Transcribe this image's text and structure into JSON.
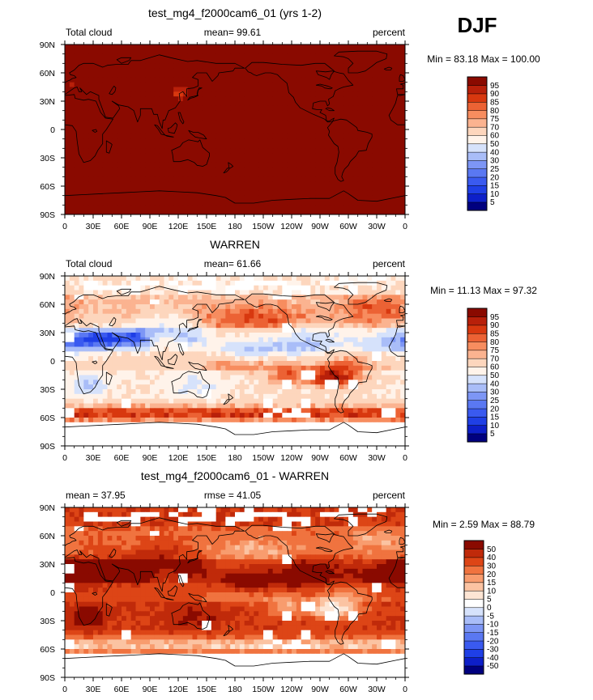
{
  "season": "DJF",
  "colors": {
    "land_line": "#000000",
    "missing": "#ffffff"
  },
  "chart_data": [
    {
      "type": "heatmap",
      "title": "test_mg4_f2000cam6_01 (yrs 1-2)",
      "left_label": "Total cloud",
      "center_label": "mean=   99.61",
      "right_label": "percent",
      "stats": "Min =  83.18 Max = 100.00",
      "x_ticks": [
        "0",
        "30E",
        "60E",
        "90E",
        "120E",
        "150E",
        "180",
        "150W",
        "120W",
        "90W",
        "60W",
        "30W",
        "0"
      ],
      "y_ticks": [
        "90N",
        "60N",
        "30N",
        "0",
        "30S",
        "60S",
        "90S"
      ],
      "levels": [
        "5",
        "10",
        "15",
        "20",
        "25",
        "30",
        "40",
        "50",
        "60",
        "70",
        "75",
        "80",
        "85",
        "90",
        "95"
      ],
      "palette": [
        "#00007f",
        "#0d1fc9",
        "#1f3fe6",
        "#3a5af0",
        "#5a78f2",
        "#7d96f5",
        "#a9bdf8",
        "#d6e2fb",
        "#fff3ea",
        "#fdd6bd",
        "#fbb390",
        "#f78d5f",
        "#ec6234",
        "#d8380f",
        "#b8200a",
        "#8a0a00"
      ],
      "field": "model",
      "mean": 99.61,
      "min": 83.18,
      "max": 100.0
    },
    {
      "type": "heatmap",
      "title": "WARREN",
      "left_label": "Total cloud",
      "center_label": "mean=   61.66",
      "right_label": "percent",
      "stats": "Min =  11.13 Max =  97.32",
      "x_ticks": [
        "0",
        "30E",
        "60E",
        "90E",
        "120E",
        "150E",
        "180",
        "150W",
        "120W",
        "90W",
        "60W",
        "30W",
        "0"
      ],
      "y_ticks": [
        "90N",
        "60N",
        "30N",
        "0",
        "30S",
        "60S",
        "90S"
      ],
      "levels": [
        "5",
        "10",
        "15",
        "20",
        "25",
        "30",
        "40",
        "50",
        "60",
        "70",
        "75",
        "80",
        "85",
        "90",
        "95"
      ],
      "palette": [
        "#00007f",
        "#0d1fc9",
        "#1f3fe6",
        "#3a5af0",
        "#5a78f2",
        "#7d96f5",
        "#a9bdf8",
        "#d6e2fb",
        "#fff3ea",
        "#fdd6bd",
        "#fbb390",
        "#f78d5f",
        "#ec6234",
        "#d8380f",
        "#b8200a",
        "#8a0a00"
      ],
      "field": "obs",
      "mean": 61.66,
      "min": 11.13,
      "max": 97.32
    },
    {
      "type": "heatmap",
      "title": "test_mg4_f2000cam6_01 - WARREN",
      "left_label": "mean =   37.95",
      "center_label": "rmse =   41.05",
      "right_label": "percent",
      "stats": "Min =   2.59 Max =  88.79",
      "x_ticks": [
        "0",
        "30E",
        "60E",
        "90E",
        "120E",
        "150E",
        "180",
        "150W",
        "120W",
        "90W",
        "60W",
        "30W",
        "0"
      ],
      "y_ticks": [
        "90N",
        "60N",
        "30N",
        "0",
        "30S",
        "60S",
        "90S"
      ],
      "levels": [
        "-50",
        "-40",
        "-30",
        "-20",
        "-15",
        "-10",
        "-5",
        "0",
        "5",
        "10",
        "15",
        "20",
        "30",
        "40",
        "50"
      ],
      "palette": [
        "#00007f",
        "#0d1fc9",
        "#1f3fe6",
        "#3a5af0",
        "#5a78f2",
        "#7d96f5",
        "#a9bdf8",
        "#d6e2fb",
        "#ffffff",
        "#fde5d4",
        "#fbc3a2",
        "#f89c6e",
        "#f0733f",
        "#dd4516",
        "#c02a0a",
        "#8a0a00"
      ],
      "field": "diff",
      "mean": 37.95,
      "rmse": 41.05,
      "min": 2.59,
      "max": 88.79
    }
  ]
}
